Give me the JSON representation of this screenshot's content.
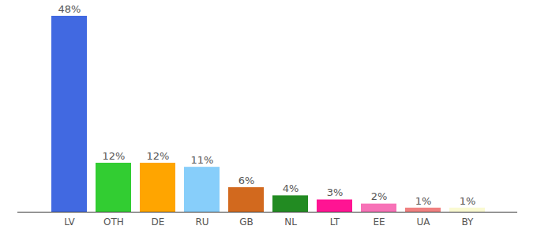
{
  "chart_data": {
    "type": "bar",
    "categories": [
      "LV",
      "OTH",
      "DE",
      "RU",
      "GB",
      "NL",
      "LT",
      "EE",
      "UA",
      "BY"
    ],
    "values": [
      48,
      12,
      12,
      11,
      6,
      4,
      3,
      2,
      1,
      1
    ],
    "value_labels": [
      "48%",
      "12%",
      "12%",
      "11%",
      "6%",
      "4%",
      "3%",
      "2%",
      "1%",
      "1%"
    ],
    "colors": [
      "#4169e1",
      "#32cd32",
      "#ffa500",
      "#87cefa",
      "#d2691e",
      "#228b22",
      "#ff1493",
      "#f772b7",
      "#f08080",
      "#fafad2"
    ],
    "ylim": [
      0,
      48
    ],
    "data_labels": true,
    "tick_labels": "x"
  }
}
